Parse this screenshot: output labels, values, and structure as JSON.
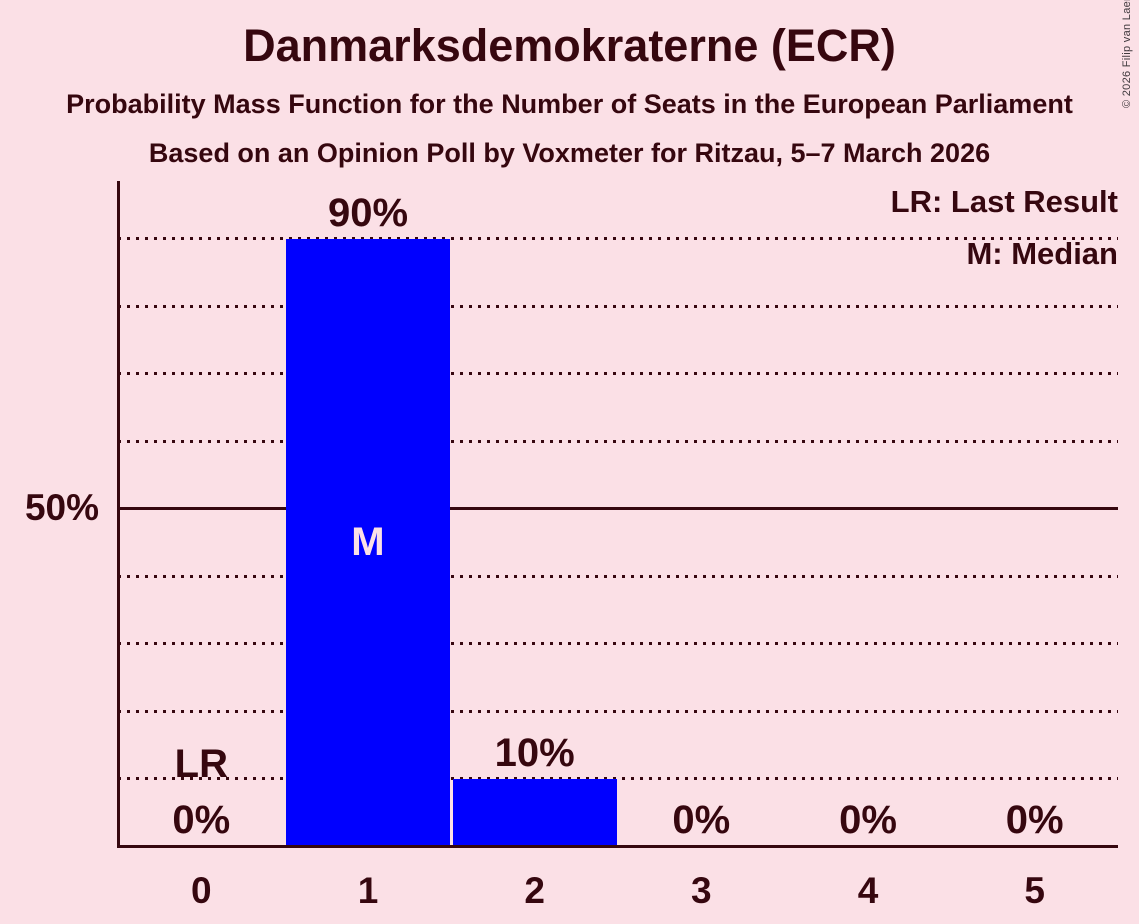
{
  "title": "Danmarksdemokraterne (ECR)",
  "subtitle1": "Probability Mass Function for the Number of Seats in the European Parliament",
  "subtitle2": "Based on an Opinion Poll by Voxmeter for Ritzau, 5–7 March 2026",
  "copyright": "© 2026 Filip van Laenen",
  "legend": {
    "last_result": "LR: Last Result",
    "median": "M: Median"
  },
  "colors": {
    "background": "#FBE0E6",
    "bar": "#0000FF",
    "text": "#36070F",
    "median_marker_text": "#FBE0E6",
    "copyright_text": "#413A3E"
  },
  "chart_data": {
    "type": "bar",
    "title": "Danmarksdemokraterne (ECR)",
    "categories": [
      "0",
      "1",
      "2",
      "3",
      "4",
      "5"
    ],
    "values": [
      0,
      90,
      10,
      0,
      0,
      0
    ],
    "bar_labels": [
      "0%",
      "90%",
      "10%",
      "0%",
      "0%",
      "0%"
    ],
    "median_category": "1",
    "last_result_category": "0",
    "markers": {
      "median": "M",
      "last_result": "LR"
    },
    "y_tick_label": "50%",
    "y_tick_value": 50,
    "ylim": [
      0,
      100
    ],
    "grid_interval_percent": 10,
    "solid_gridline_at": 50,
    "xlabel": "",
    "ylabel": "",
    "grid": "dotted horizontal lines every 10%, solid line at 50%",
    "legend_position": "top-right"
  }
}
